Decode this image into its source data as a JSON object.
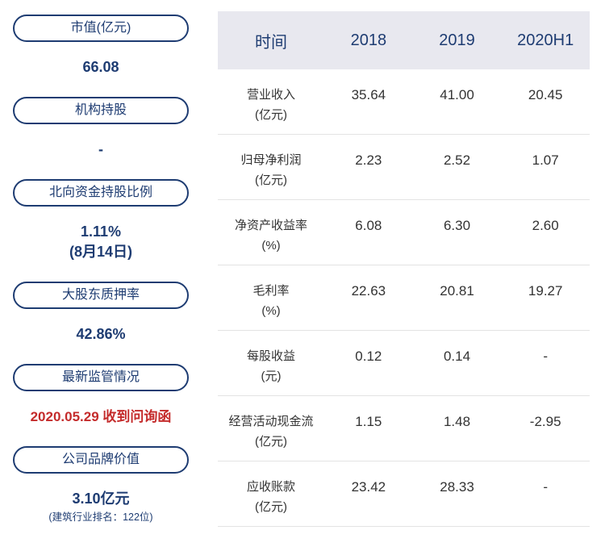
{
  "colors": {
    "accent_navy": "#1e3c72",
    "alert_red": "#c42b2b",
    "table_header_bg": "#e8e8ef",
    "row_border": "#e3e3e3",
    "body_text": "#333333"
  },
  "sidebar": {
    "items": [
      {
        "label": "市值(亿元)",
        "value": "66.08"
      },
      {
        "label": "机构持股",
        "value": "-"
      },
      {
        "label": "北向资金持股比例",
        "value": "1.11%",
        "value2": "(8月14日)"
      },
      {
        "label": "大股东质押率",
        "value": "42.86%"
      },
      {
        "label": "最新监管情况",
        "value": "2020.05.29 收到问询函"
      },
      {
        "label": "公司品牌价值",
        "value": "3.10亿元",
        "value2": "(建筑行业排名：122位)"
      }
    ]
  },
  "table": {
    "headers": [
      "时间",
      "2018",
      "2019",
      "2020H1"
    ],
    "rows": [
      {
        "label": "营业收入",
        "unit": "(亿元)",
        "values": [
          "35.64",
          "41.00",
          "20.45"
        ]
      },
      {
        "label": "归母净利润",
        "unit": "(亿元)",
        "values": [
          "2.23",
          "2.52",
          "1.07"
        ]
      },
      {
        "label": "净资产收益率",
        "unit": "(%)",
        "values": [
          "6.08",
          "6.30",
          "2.60"
        ]
      },
      {
        "label": "毛利率",
        "unit": "(%)",
        "values": [
          "22.63",
          "20.81",
          "19.27"
        ]
      },
      {
        "label": "每股收益",
        "unit": "(元)",
        "values": [
          "0.12",
          "0.14",
          "-"
        ]
      },
      {
        "label": "经营活动现金流",
        "unit": "(亿元)",
        "values": [
          "1.15",
          "1.48",
          "-2.95"
        ]
      },
      {
        "label": "应收账款",
        "unit": "(亿元)",
        "values": [
          "23.42",
          "28.33",
          "-"
        ]
      }
    ]
  },
  "chart_data": {
    "type": "table",
    "columns": [
      "时间",
      "2018",
      "2019",
      "2020H1"
    ],
    "rows": [
      {
        "metric": "营业收入(亿元)",
        "values": [
          35.64,
          41.0,
          20.45
        ]
      },
      {
        "metric": "归母净利润(亿元)",
        "values": [
          2.23,
          2.52,
          1.07
        ]
      },
      {
        "metric": "净资产收益率(%)",
        "values": [
          6.08,
          6.3,
          2.6
        ]
      },
      {
        "metric": "毛利率(%)",
        "values": [
          22.63,
          20.81,
          19.27
        ]
      },
      {
        "metric": "每股收益(元)",
        "values": [
          0.12,
          0.14,
          null
        ]
      },
      {
        "metric": "经营活动现金流(亿元)",
        "values": [
          1.15,
          1.48,
          -2.95
        ]
      },
      {
        "metric": "应收账款(亿元)",
        "values": [
          23.42,
          28.33,
          null
        ]
      }
    ],
    "stats": [
      {
        "name": "市值(亿元)",
        "value": 66.08
      },
      {
        "name": "机构持股",
        "value": null
      },
      {
        "name": "北向资金持股比例",
        "value": "1.11% (8月14日)"
      },
      {
        "name": "大股东质押率",
        "value": "42.86%"
      },
      {
        "name": "最新监管情况",
        "value": "2020.05.29 收到问询函"
      },
      {
        "name": "公司品牌价值",
        "value": "3.10亿元 (建筑行业排名：122位)"
      }
    ]
  }
}
